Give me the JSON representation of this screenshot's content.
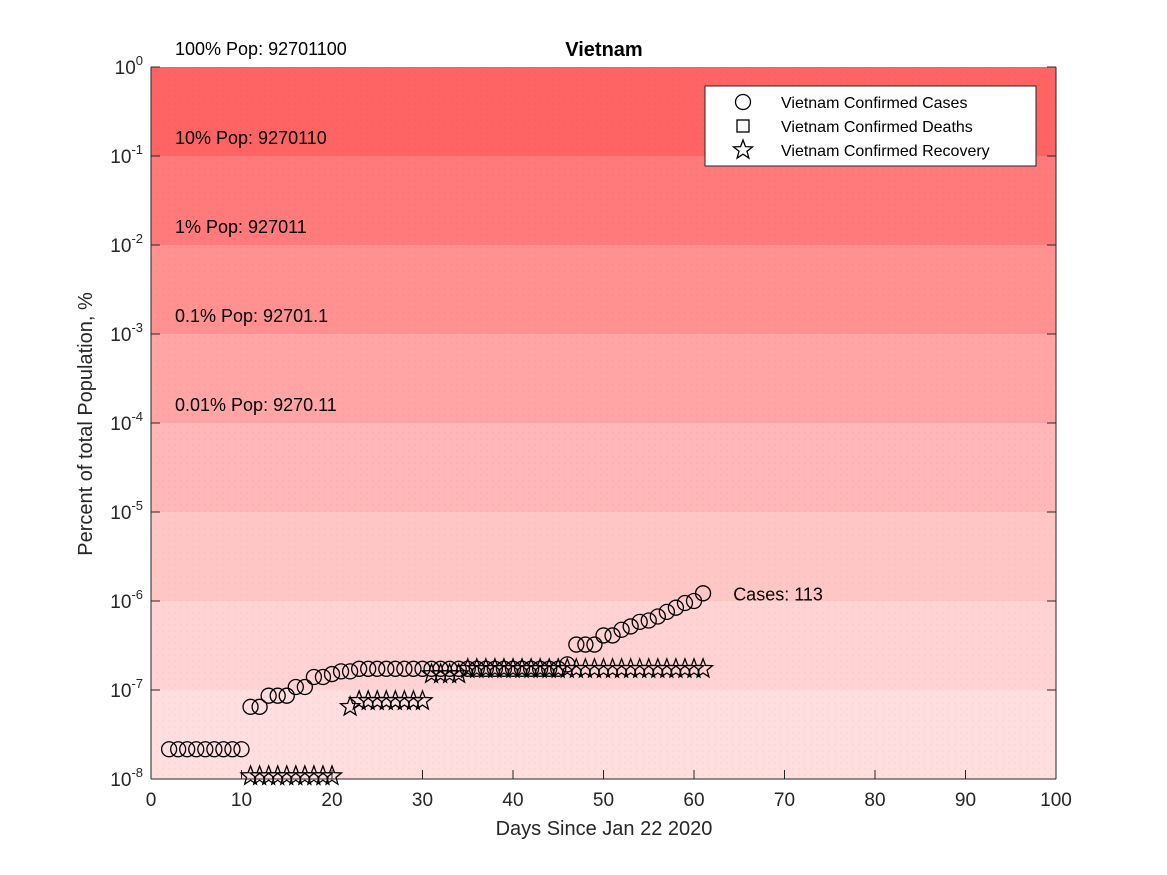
{
  "chart_data": {
    "type": "scatter",
    "title": "Vietnam",
    "xlabel": "Days Since Jan 22 2020",
    "ylabel": "Percent of total Population, %",
    "xlim": [
      0,
      100
    ],
    "ylim": [
      1e-08,
      1
    ],
    "yscale": "log",
    "grid": false,
    "legend_position": "top-right",
    "x_ticks": [
      "0",
      "10",
      "20",
      "30",
      "40",
      "50",
      "60",
      "70",
      "80",
      "90",
      "100"
    ],
    "y_ticks": [
      {
        "base": "10",
        "exp": "0",
        "value": 1
      },
      {
        "base": "10",
        "exp": "-1",
        "value": 0.1
      },
      {
        "base": "10",
        "exp": "-2",
        "value": 0.01
      },
      {
        "base": "10",
        "exp": "-3",
        "value": 0.001
      },
      {
        "base": "10",
        "exp": "-4",
        "value": 0.0001
      },
      {
        "base": "10",
        "exp": "-5",
        "value": 1e-05
      },
      {
        "base": "10",
        "exp": "-6",
        "value": 1e-06
      },
      {
        "base": "10",
        "exp": "-7",
        "value": 1e-07
      },
      {
        "base": "10",
        "exp": "-8",
        "value": 1e-08
      }
    ],
    "bands": [
      {
        "label": "100% Pop: 92701100",
        "low": 0.1,
        "high": 1,
        "color": "#ff6464"
      },
      {
        "label": "10% Pop: 9270110",
        "low": 0.01,
        "high": 0.1,
        "color": "#ff7a7a"
      },
      {
        "label": "1% Pop: 927011",
        "low": 0.001,
        "high": 0.01,
        "color": "#ff9191"
      },
      {
        "label": "0.1% Pop: 92701.1",
        "low": 0.0001,
        "high": 0.001,
        "color": "#ffa5a5"
      },
      {
        "label": "0.01% Pop: 9270.11",
        "low": 1e-05,
        "high": 0.0001,
        "color": "#ffb7b7"
      },
      {
        "label": "",
        "low": 1e-06,
        "high": 1e-05,
        "color": "#ffc6c6"
      },
      {
        "label": "",
        "low": 1e-07,
        "high": 1e-06,
        "color": "#ffd3d3"
      },
      {
        "label": "",
        "low": 1e-08,
        "high": 1e-07,
        "color": "#ffdedf"
      }
    ],
    "series": [
      {
        "name": "Vietnam Confirmed Cases",
        "marker": "circle",
        "x": [
          2,
          3,
          4,
          5,
          6,
          7,
          8,
          9,
          10,
          11,
          12,
          13,
          14,
          15,
          16,
          17,
          18,
          19,
          20,
          21,
          22,
          23,
          24,
          25,
          26,
          27,
          28,
          29,
          30,
          31,
          32,
          33,
          34,
          35,
          36,
          37,
          38,
          39,
          40,
          41,
          42,
          43,
          44,
          45,
          46,
          47,
          48,
          49,
          50,
          51,
          52,
          53,
          54,
          55,
          56,
          57,
          58,
          59,
          60,
          61
        ],
        "y": [
          2.16e-08,
          2.16e-08,
          2.16e-08,
          2.16e-08,
          2.16e-08,
          2.16e-08,
          2.16e-08,
          2.16e-08,
          2.16e-08,
          6.47e-08,
          6.47e-08,
          8.63e-08,
          8.63e-08,
          8.63e-08,
          1.08e-07,
          1.08e-07,
          1.4e-07,
          1.4e-07,
          1.51e-07,
          1.62e-07,
          1.62e-07,
          1.73e-07,
          1.73e-07,
          1.73e-07,
          1.73e-07,
          1.73e-07,
          1.73e-07,
          1.73e-07,
          1.73e-07,
          1.73e-07,
          1.73e-07,
          1.73e-07,
          1.73e-07,
          1.73e-07,
          1.73e-07,
          1.73e-07,
          1.73e-07,
          1.73e-07,
          1.73e-07,
          1.73e-07,
          1.73e-07,
          1.73e-07,
          1.73e-07,
          1.73e-07,
          1.94e-07,
          3.24e-07,
          3.24e-07,
          3.24e-07,
          4.1e-07,
          4.1e-07,
          4.75e-07,
          5.18e-07,
          5.83e-07,
          6.04e-07,
          6.69e-07,
          7.55e-07,
          8.41e-07,
          9.49e-07,
          1e-06,
          1.22e-06
        ]
      },
      {
        "name": "Vietnam Confirmed Deaths",
        "marker": "square",
        "x": [],
        "y": []
      },
      {
        "name": "Vietnam Confirmed Recovery",
        "marker": "star",
        "x": [
          11,
          12,
          13,
          14,
          15,
          16,
          17,
          18,
          19,
          20,
          22,
          23,
          24,
          25,
          26,
          27,
          28,
          29,
          30,
          31,
          32,
          33,
          34,
          35,
          36,
          37,
          38,
          39,
          40,
          41,
          42,
          43,
          44,
          45,
          46,
          47,
          48,
          49,
          50,
          51,
          52,
          53,
          54,
          55,
          56,
          57,
          58,
          59,
          60,
          61
        ],
        "y": [
          1.08e-08,
          1.08e-08,
          1.08e-08,
          1.08e-08,
          1.08e-08,
          1.08e-08,
          1.08e-08,
          1.08e-08,
          1.08e-08,
          1.08e-08,
          6.47e-08,
          7.55e-08,
          7.55e-08,
          7.55e-08,
          7.55e-08,
          7.55e-08,
          7.55e-08,
          7.55e-08,
          7.55e-08,
          1.51e-07,
          1.51e-07,
          1.51e-07,
          1.51e-07,
          1.73e-07,
          1.73e-07,
          1.73e-07,
          1.73e-07,
          1.73e-07,
          1.73e-07,
          1.73e-07,
          1.73e-07,
          1.73e-07,
          1.73e-07,
          1.73e-07,
          1.73e-07,
          1.73e-07,
          1.73e-07,
          1.73e-07,
          1.73e-07,
          1.73e-07,
          1.73e-07,
          1.73e-07,
          1.73e-07,
          1.73e-07,
          1.73e-07,
          1.73e-07,
          1.73e-07,
          1.73e-07,
          1.73e-07,
          1.73e-07
        ]
      }
    ],
    "annotations": [
      {
        "text": "Cases: 113",
        "x": 64,
        "y": 1.22e-06
      }
    ]
  }
}
